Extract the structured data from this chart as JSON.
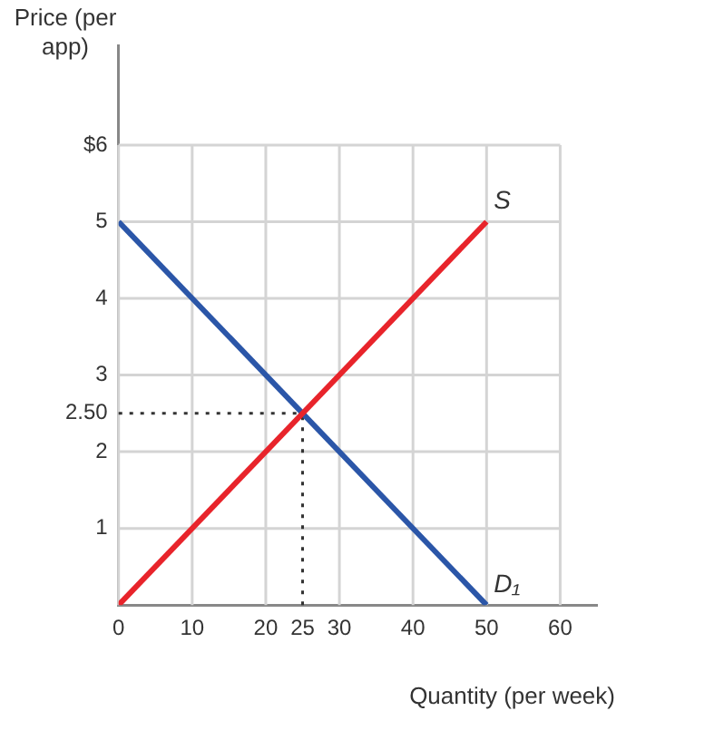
{
  "chart_data": {
    "type": "line",
    "xlabel": "Quantity (per week)",
    "ylabel": "Price (per app)",
    "x": [
      0,
      50
    ],
    "series": [
      {
        "name": "S",
        "color": "#e8242b",
        "values": [
          0,
          5
        ]
      },
      {
        "name": "D₁",
        "color": "#2b56a8",
        "values": [
          5,
          0
        ]
      }
    ],
    "xlim": [
      0,
      65
    ],
    "ylim": [
      0,
      7.3
    ],
    "xticks": [
      0,
      10,
      20,
      25,
      30,
      40,
      50,
      60
    ],
    "yticks": [
      1,
      2,
      {
        "value": 2.5,
        "label": "2.50"
      },
      3,
      4,
      5,
      {
        "value": 6,
        "label": "$6"
      }
    ],
    "grid": true,
    "legend": false,
    "marker": "none",
    "line_style": "solid",
    "ref_lines": [
      {
        "axis": "x",
        "value": 25,
        "line_style": "dotted"
      },
      {
        "axis": "y",
        "value": 2.5,
        "line_style": "dotted"
      }
    ]
  }
}
